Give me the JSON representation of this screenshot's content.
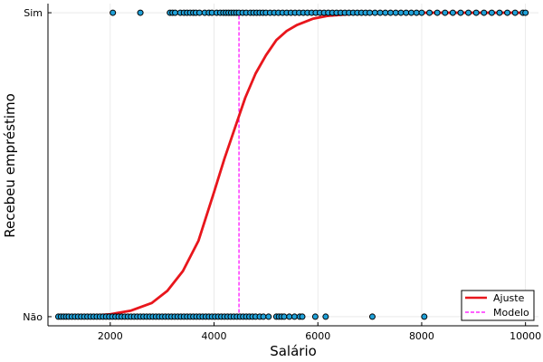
{
  "chart_data": {
    "type": "scatter",
    "xlabel": "Salário",
    "ylabel": "Recebeu empréstimo",
    "xlim": [
      800,
      10250
    ],
    "ylim": [
      -0.03,
      1.03
    ],
    "grid": true,
    "legend_position": "bottom-right",
    "x_ticks": [
      {
        "value": 2000,
        "label": "2000"
      },
      {
        "value": 4000,
        "label": "4000"
      },
      {
        "value": 6000,
        "label": "6000"
      },
      {
        "value": 8000,
        "label": "8000"
      },
      {
        "value": 10000,
        "label": "10000"
      }
    ],
    "y_ticks": [
      {
        "value": 0,
        "label": "Não"
      },
      {
        "value": 1,
        "label": "Sim"
      }
    ],
    "points": {
      "color": "#1fa0d8",
      "stroke": "#000000",
      "x_no": [
        1000,
        1050,
        1100,
        1150,
        1200,
        1260,
        1320,
        1380,
        1440,
        1500,
        1560,
        1620,
        1680,
        1740,
        1800,
        1860,
        1920,
        1980,
        2040,
        2100,
        2160,
        2220,
        2280,
        2340,
        2400,
        2460,
        2520,
        2580,
        2640,
        2700,
        2760,
        2820,
        2880,
        2940,
        3000,
        3060,
        3120,
        3180,
        3240,
        3300,
        3360,
        3420,
        3480,
        3540,
        3600,
        3660,
        3720,
        3780,
        3840,
        3900,
        3960,
        4020,
        4080,
        4140,
        4200,
        4260,
        4320,
        4380,
        4440,
        4500,
        4560,
        4620,
        4680,
        4740,
        4800,
        4880,
        4950,
        5050,
        5200,
        5250,
        5300,
        5350,
        5450,
        5550,
        5650,
        5700,
        5950,
        6150,
        7050,
        8050
      ],
      "x_yes": [
        2050,
        2580,
        3150,
        3200,
        3250,
        3350,
        3420,
        3480,
        3540,
        3600,
        3650,
        3720,
        3820,
        3900,
        3960,
        4050,
        4120,
        4180,
        4230,
        4280,
        4330,
        4380,
        4430,
        4480,
        4550,
        4620,
        4700,
        4760,
        4820,
        4880,
        4940,
        5000,
        5080,
        5160,
        5240,
        5320,
        5400,
        5480,
        5560,
        5640,
        5720,
        5800,
        5880,
        5960,
        6040,
        6120,
        6200,
        6280,
        6360,
        6440,
        6520,
        6600,
        6680,
        6760,
        6840,
        6920,
        7000,
        7100,
        7200,
        7300,
        7400,
        7500,
        7600,
        7700,
        7800,
        7900,
        8000,
        8150,
        8300,
        8450,
        8600,
        8750,
        8900,
        9050,
        9200,
        9350,
        9500,
        9650,
        9800,
        9950,
        10000
      ]
    },
    "series": [
      {
        "name": "Ajuste",
        "color": "#e8161c",
        "style": "solid",
        "x": [
          1100,
          1500,
          2000,
          2400,
          2800,
          3100,
          3400,
          3700,
          4000,
          4200,
          4400,
          4600,
          4800,
          5000,
          5200,
          5400,
          5600,
          5900,
          6200,
          6600,
          7000,
          8000,
          9000,
          10000
        ],
        "y": [
          0.0,
          0.002,
          0.008,
          0.02,
          0.045,
          0.085,
          0.15,
          0.25,
          0.41,
          0.52,
          0.62,
          0.72,
          0.8,
          0.86,
          0.91,
          0.94,
          0.96,
          0.98,
          0.99,
          0.995,
          0.998,
          1.0,
          1.0,
          1.0
        ]
      },
      {
        "name": "Modelo",
        "color": "#ff00ff",
        "style": "dashed",
        "x": [
          1000,
          4480,
          4480,
          10000
        ],
        "y": [
          0,
          0,
          1,
          1
        ]
      }
    ]
  }
}
